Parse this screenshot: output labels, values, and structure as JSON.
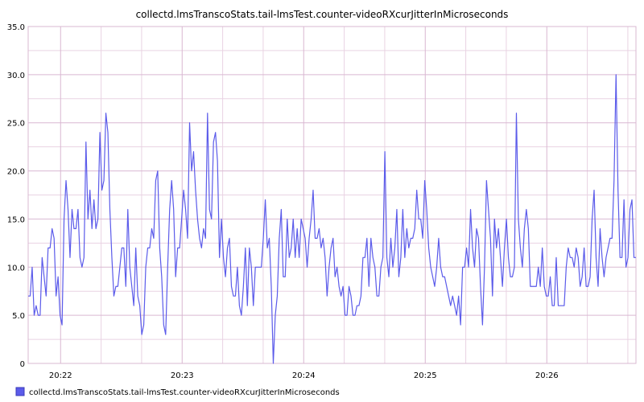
{
  "chart_data": {
    "type": "line",
    "title": "collectd.lmsTranscoStats.tail-lmsTest.counter-videoRXcurJitterInMicroseconds",
    "xlabel": "",
    "ylabel": "",
    "ylim": [
      0,
      35
    ],
    "y_ticks": [
      "0",
      "5.0",
      "10.0",
      "15.0",
      "20.0",
      "25.0",
      "30.0",
      "35.0"
    ],
    "x_range_minutes": [
      "20:21:44",
      "20:26:44"
    ],
    "x_ticks": [
      "20:22",
      "20:23",
      "20:24",
      "20:25",
      "20:26"
    ],
    "grid": true,
    "line_color": "#5b5bea",
    "grid_color": "#e9d3e3",
    "major_grid_color": "#d9b8d2",
    "legend_position": "bottom-left",
    "series": [
      {
        "name": "collectd.lmsTranscoStats.tail-lmsTest.counter-videoRXcurJitterInMicroseconds",
        "values": [
          7,
          7,
          10,
          5,
          6,
          5,
          5,
          11,
          9,
          7,
          12,
          12,
          14,
          13,
          7,
          9,
          5,
          4,
          15,
          19,
          16,
          11,
          16,
          14,
          14,
          16,
          11,
          10,
          11,
          23,
          15,
          18,
          14,
          17,
          14,
          15,
          24,
          18,
          19,
          26,
          24,
          16,
          11,
          7,
          8,
          8,
          10,
          12,
          12,
          8,
          16,
          10,
          8,
          6,
          12,
          7,
          6,
          3,
          4,
          10,
          12,
          12,
          14,
          13,
          19,
          20,
          12,
          9,
          4,
          3,
          10,
          16,
          19,
          16,
          9,
          12,
          12,
          15,
          18,
          16,
          13,
          25,
          20,
          22,
          18,
          15,
          13,
          12,
          14,
          13,
          26,
          16,
          15,
          23,
          24,
          21,
          11,
          15,
          11,
          9,
          12,
          13,
          8,
          7,
          7,
          10,
          6,
          5,
          8,
          12,
          6,
          12,
          10,
          6,
          10,
          10,
          10,
          10,
          13,
          17,
          12,
          13,
          8,
          0,
          5,
          7,
          13,
          16,
          9,
          9,
          15,
          11,
          12,
          15,
          11,
          14,
          11,
          15,
          14,
          13,
          10,
          13,
          15,
          18,
          13,
          13,
          14,
          12,
          13,
          11,
          7,
          10,
          12,
          13,
          9,
          10,
          8,
          7,
          8,
          5,
          5,
          8,
          7,
          5,
          5,
          6,
          6,
          7,
          11,
          11,
          13,
          8,
          13,
          11,
          10,
          7,
          7,
          10,
          11,
          22,
          11,
          9,
          13,
          10,
          12,
          16,
          9,
          11,
          16,
          11,
          14,
          12,
          13,
          13,
          14,
          18,
          15,
          15,
          13,
          19,
          16,
          12,
          10,
          9,
          8,
          10,
          13,
          10,
          9,
          9,
          8,
          7,
          6,
          7,
          6,
          5,
          7,
          4,
          10,
          10,
          12,
          10,
          16,
          12,
          10,
          14,
          13,
          8,
          4,
          10,
          19,
          16,
          13,
          7,
          15,
          12,
          14,
          11,
          8,
          12,
          15,
          11,
          9,
          9,
          10,
          26,
          15,
          12,
          10,
          14,
          16,
          14,
          8,
          8,
          8,
          8,
          10,
          8,
          12,
          8,
          7,
          7,
          9,
          6,
          6,
          11,
          6,
          6,
          6,
          6,
          10,
          12,
          11,
          11,
          10,
          12,
          11,
          8,
          9,
          12,
          8,
          8,
          9,
          15,
          18,
          11,
          8,
          14,
          11,
          9,
          11,
          12,
          13,
          13,
          19,
          30,
          18,
          11,
          11,
          17,
          10,
          11,
          16,
          17,
          11,
          11
        ]
      }
    ]
  }
}
